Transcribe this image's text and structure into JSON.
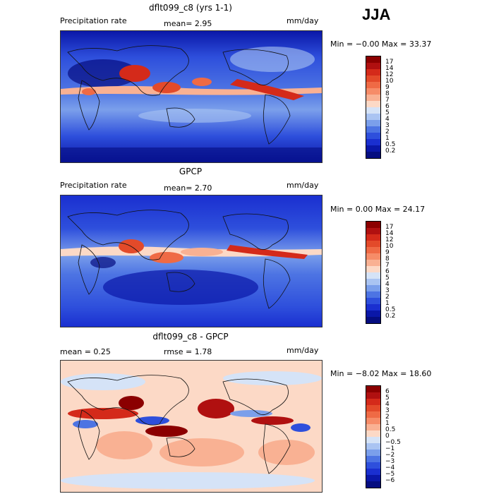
{
  "season": "JJA",
  "panels": [
    {
      "title": "dflt099_c8 (yrs 1-1)",
      "left_label": "Precipitation rate",
      "mean_text": "mean=   2.95",
      "units": "mm/day",
      "minmax": "Min =  −0.00 Max =  33.37",
      "colorbar_labels": [
        "17",
        "14",
        "12",
        "10",
        "9",
        "8",
        "7",
        "6",
        "5",
        "4",
        "3",
        "2",
        "1",
        "0.5",
        "0.2"
      ],
      "colorbar_colors": [
        "#8b0000",
        "#b01010",
        "#d42a1a",
        "#e34a2a",
        "#ef6a45",
        "#f68c68",
        "#f9b193",
        "#fcd9c6",
        "#d5e3f7",
        "#aac4f2",
        "#7b9feb",
        "#4d74e3",
        "#2e4fdc",
        "#1a2fd0",
        "#0a17a8",
        "#050d80"
      ]
    },
    {
      "title": "GPCP",
      "left_label": "Precipitation rate",
      "mean_text": "mean=   2.70",
      "units": "mm/day",
      "minmax": "Min =   0.00 Max =  24.17",
      "colorbar_labels": [
        "17",
        "14",
        "12",
        "10",
        "9",
        "8",
        "7",
        "6",
        "5",
        "4",
        "3",
        "2",
        "1",
        "0.5",
        "0.2"
      ],
      "colorbar_colors": [
        "#8b0000",
        "#b01010",
        "#d42a1a",
        "#e34a2a",
        "#ef6a45",
        "#f68c68",
        "#f9b193",
        "#fcd9c6",
        "#d5e3f7",
        "#aac4f2",
        "#7b9feb",
        "#4d74e3",
        "#2e4fdc",
        "#1a2fd0",
        "#0a17a8",
        "#050d80"
      ]
    },
    {
      "title": "dflt099_c8 - GPCP",
      "left_label": "mean =    0.25",
      "mean_text": "rmse =    1.78",
      "units": "mm/day",
      "minmax": "Min =  −8.02 Max =  18.60",
      "colorbar_labels": [
        "6",
        "5",
        "4",
        "3",
        "2",
        "1",
        "0.5",
        "0",
        "−0.5",
        "−1",
        "−2",
        "−3",
        "−4",
        "−5",
        "−6"
      ],
      "colorbar_colors": [
        "#8b0000",
        "#b01010",
        "#d42a1a",
        "#e34a2a",
        "#ef6a45",
        "#f68c68",
        "#f9b193",
        "#fcd9c6",
        "#d5e3f7",
        "#aac4f2",
        "#7b9feb",
        "#4d74e3",
        "#2e4fdc",
        "#1a2fd0",
        "#0a17a8",
        "#050d80"
      ]
    }
  ]
}
